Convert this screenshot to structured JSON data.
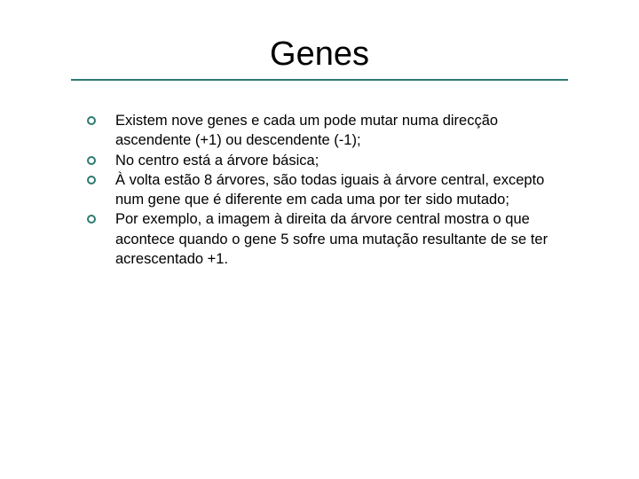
{
  "title": "Genes",
  "accent_color": "#2e7a6f",
  "background_color": "#ffffff",
  "title_fontsize": 38,
  "body_fontsize": 16.5,
  "bullets": [
    {
      "text": "Existem nove genes e cada um pode mutar numa direcção ascendente (+1) ou descendente (-1);"
    },
    {
      "text": "No centro está a árvore básica;"
    },
    {
      "text": "À volta estão 8 árvores, são todas iguais à árvore central, excepto num gene que é diferente em cada uma por ter sido mutado;"
    },
    {
      "text": "Por exemplo, a imagem à direita da árvore central mostra o que acontece quando o gene 5 sofre uma mutação resultante de se ter acrescentado +1."
    }
  ]
}
